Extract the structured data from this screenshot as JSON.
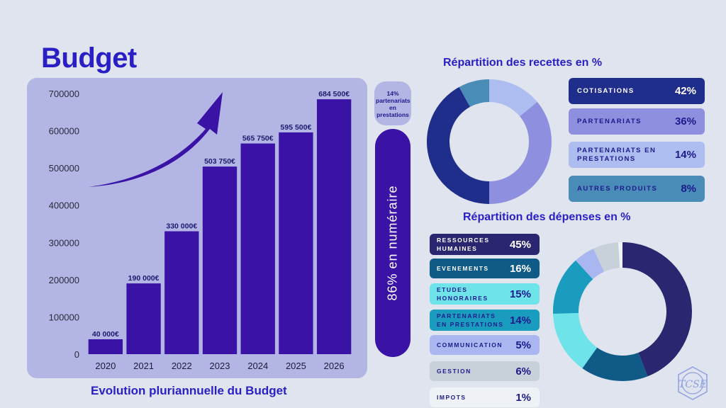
{
  "title": "Budget",
  "caption": "Evolution pluriannuelle du  Budget",
  "chart_data": [
    {
      "type": "bar",
      "categories": [
        "2020",
        "2021",
        "2022",
        "2023",
        "2024",
        "2025",
        "2026"
      ],
      "values": [
        40000,
        190000,
        330000,
        503750,
        565750,
        595500,
        684500
      ],
      "data_labels": [
        "40 000€",
        "190 000€",
        "330 000€",
        "503 750€",
        "565 750€",
        "595 500€",
        "684 500€"
      ],
      "yticks": [
        "0",
        "100000",
        "200000",
        "300000",
        "400000",
        "500000",
        "600000",
        "700000"
      ],
      "ylim": [
        0,
        700000
      ],
      "grid": false,
      "color": "#3a12a6"
    },
    {
      "type": "pie",
      "title": "Répartition des recettes en %",
      "slices": [
        {
          "label": "COTISATIONS",
          "value": 42,
          "pct": "42%",
          "color": "#1f2e8a",
          "text_color": "#ffffff"
        },
        {
          "label": "PARTENARIATS",
          "value": 36,
          "pct": "36%",
          "color": "#8f8fe0",
          "text_color": "#1d1a8c"
        },
        {
          "label": "PARTENARIATS EN PRESTATIONS",
          "value": 14,
          "pct": "14%",
          "color": "#aebdf0",
          "text_color": "#1d1a8c"
        },
        {
          "label": "AUTRES PRODUITS",
          "value": 8,
          "pct": "8%",
          "color": "#4a8cb8",
          "text_color": "#1d1a8c"
        }
      ]
    },
    {
      "type": "pie",
      "title": "Répartition des dépenses en %",
      "slices": [
        {
          "label": "RESSOURCES HUMAINES",
          "value": 45,
          "pct": "45%",
          "color": "#2b2670",
          "text_color": "#ffffff"
        },
        {
          "label": "EVENEMENTS",
          "value": 16,
          "pct": "16%",
          "color": "#0f5a86",
          "text_color": "#ffffff"
        },
        {
          "label": "ETUDES HONORAIRES",
          "value": 15,
          "pct": "15%",
          "color": "#6ee3ea",
          "text_color": "#1d1a8c"
        },
        {
          "label": "PARTENARIATS EN PRESTATIONS",
          "value": 14,
          "pct": "14%",
          "color": "#1a9cbf",
          "text_color": "#1d1a8c"
        },
        {
          "label": "COMMUNICATION",
          "value": 5,
          "pct": "5%",
          "color": "#a9b6f0",
          "text_color": "#1d1a8c"
        },
        {
          "label": "GESTION",
          "value": 6,
          "pct": "6%",
          "color": "#c8d0da",
          "text_color": "#1d1a8c"
        },
        {
          "label": "IMPOTS",
          "value": 1,
          "pct": "1%",
          "color": "#eef1f6",
          "text_color": "#1d1a8c"
        }
      ]
    }
  ],
  "split": {
    "top_label": "14% partenariats en prestations",
    "main_label": "86% en numéraire"
  },
  "logo": {
    "letters": "TCSE"
  }
}
